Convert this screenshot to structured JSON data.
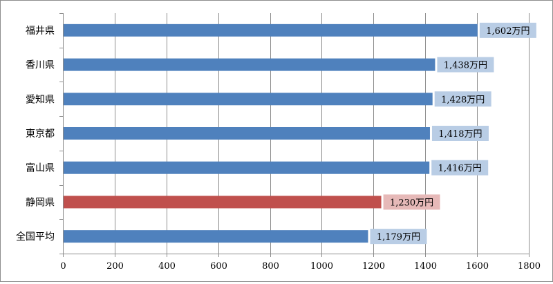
{
  "chart_data": {
    "type": "bar",
    "orientation": "horizontal",
    "categories": [
      "福井県",
      "香川県",
      "愛知県",
      "東京都",
      "富山県",
      "静岡県",
      "全国平均"
    ],
    "values": [
      1602,
      1438,
      1428,
      1418,
      1416,
      1230,
      1179
    ],
    "data_labels": [
      "1,602万円",
      "1,438万円",
      "1,428万円",
      "1,418万円",
      "1,416万円",
      "1,230万円",
      "1,179万円"
    ],
    "xticks": [
      "0",
      "200",
      "400",
      "600",
      "800",
      "1000",
      "1200",
      "1400",
      "1600",
      "1800"
    ],
    "xlim": [
      0,
      1800
    ],
    "grid": "vertical",
    "legend": "none",
    "colors": {
      "bar": "#4f81bd",
      "highlight_bar": "#c0504d",
      "label_bg": "#b9cde5",
      "highlight_label_bg": "#e6b9b8",
      "grid": "#8c8c8c"
    },
    "highlight_index": 5
  }
}
